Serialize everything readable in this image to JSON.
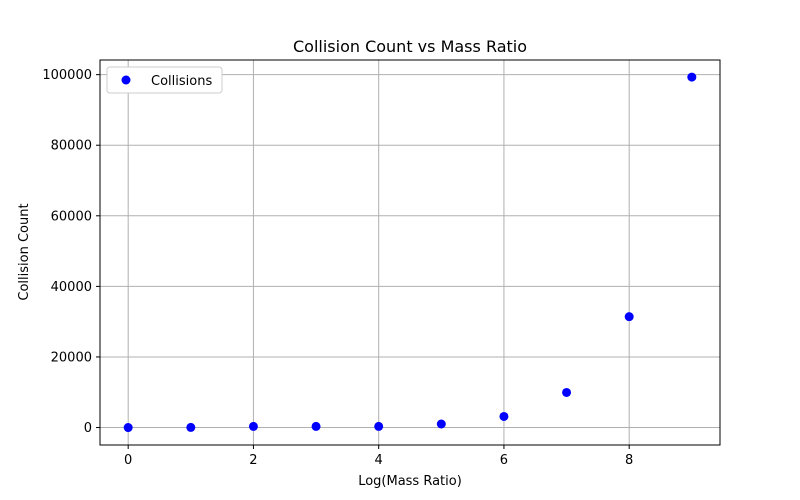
{
  "chart_data": {
    "type": "scatter",
    "title": "Collision Count vs Mass Ratio",
    "xlabel": "Log(Mass Ratio)",
    "ylabel": "Collision Count",
    "xlim": [
      -0.45,
      9.45
    ],
    "ylim": [
      -4950,
      104150
    ],
    "x_ticks": [
      0,
      2,
      4,
      6,
      8
    ],
    "y_ticks": [
      0,
      20000,
      40000,
      60000,
      80000,
      100000
    ],
    "grid": true,
    "legend_position": "top-left",
    "series": [
      {
        "name": "Collisions",
        "color": "#0000ff",
        "x": [
          0,
          1,
          2,
          3,
          4,
          5,
          6,
          7,
          8,
          9
        ],
        "y": [
          3,
          31,
          314,
          314,
          314,
          1000,
          3141,
          9930,
          31415,
          99300
        ]
      }
    ]
  }
}
